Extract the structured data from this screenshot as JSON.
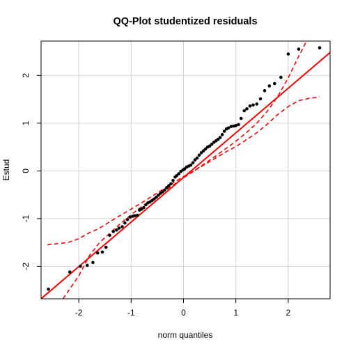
{
  "chart_data": {
    "type": "scatter",
    "title": "QQ-Plot studentized residuals",
    "xlabel": "norm quantiles",
    "ylabel": "Estud",
    "xlim": [
      -2.72,
      2.8
    ],
    "ylim": [
      -2.68,
      2.72
    ],
    "xticks": [
      -2,
      -1,
      0,
      1,
      2
    ],
    "yticks": [
      -2,
      -1,
      0,
      1,
      2
    ],
    "xtick_labels": [
      "-2",
      "-1",
      "0",
      "1",
      "2"
    ],
    "ytick_labels": [
      "-2",
      "-1",
      "0",
      "1",
      "2"
    ],
    "grid": true,
    "colors": {
      "points": "#000000",
      "reference_line": "#ff0000",
      "envelope": "#ff0000",
      "grid": "#d3d3d3"
    },
    "points": {
      "x": [
        -2.58,
        -2.17,
        -1.97,
        -1.84,
        -1.73,
        -1.64,
        -1.55,
        -1.48,
        -1.41,
        -1.34,
        -1.28,
        -1.23,
        -1.17,
        -1.12,
        -1.07,
        -1.02,
        -0.97,
        -0.93,
        -0.88,
        -0.84,
        -0.8,
        -0.76,
        -0.72,
        -0.68,
        -0.64,
        -0.6,
        -0.56,
        -0.52,
        -0.48,
        -0.44,
        -0.4,
        -0.36,
        -0.32,
        -0.28,
        -0.24,
        -0.2,
        -0.16,
        -0.13,
        -0.09,
        -0.05,
        -0.01,
        0.02,
        0.06,
        0.1,
        0.14,
        0.18,
        0.22,
        0.26,
        0.3,
        0.34,
        0.38,
        0.42,
        0.46,
        0.5,
        0.54,
        0.58,
        0.62,
        0.66,
        0.7,
        0.74,
        0.78,
        0.82,
        0.86,
        0.91,
        0.96,
        1.0,
        1.05,
        1.1,
        1.16,
        1.21,
        1.27,
        1.33,
        1.4,
        1.47,
        1.55,
        1.64,
        1.74,
        1.86,
        2.0,
        2.2,
        2.6
      ],
      "y": [
        -2.48,
        -2.12,
        -2.0,
        -1.98,
        -1.92,
        -1.72,
        -1.7,
        -1.6,
        -1.35,
        -1.27,
        -1.24,
        -1.2,
        -1.17,
        -1.09,
        -1.02,
        -0.97,
        -0.95,
        -0.94,
        -0.93,
        -0.82,
        -0.8,
        -0.77,
        -0.71,
        -0.67,
        -0.65,
        -0.62,
        -0.59,
        -0.55,
        -0.51,
        -0.47,
        -0.44,
        -0.4,
        -0.35,
        -0.31,
        -0.27,
        -0.2,
        -0.13,
        -0.1,
        -0.06,
        -0.01,
        0.02,
        0.04,
        0.08,
        0.1,
        0.12,
        0.17,
        0.23,
        0.27,
        0.33,
        0.38,
        0.42,
        0.46,
        0.5,
        0.52,
        0.56,
        0.6,
        0.63,
        0.66,
        0.7,
        0.76,
        0.83,
        0.88,
        0.9,
        0.93,
        0.94,
        0.95,
        0.97,
        1.1,
        1.26,
        1.3,
        1.36,
        1.38,
        1.4,
        1.51,
        1.68,
        1.78,
        1.83,
        1.96,
        2.45,
        2.55,
        2.58
      ]
    },
    "reference_line": {
      "x": [
        -2.72,
        2.8
      ],
      "y": [
        -2.68,
        2.48
      ]
    },
    "envelope_lower": {
      "x": [
        -2.6,
        -2.2,
        -2.0,
        -1.8,
        -1.6,
        -1.4,
        -1.2,
        -1.0,
        -0.8,
        -0.6,
        -0.4,
        -0.2,
        0.0,
        0.2,
        0.4,
        0.6,
        0.8,
        1.0,
        1.2,
        1.4,
        1.6,
        1.8,
        2.0,
        2.2,
        2.4,
        2.6
      ],
      "y": [
        -1.55,
        -1.5,
        -1.42,
        -1.3,
        -1.2,
        -1.06,
        -0.93,
        -0.8,
        -0.67,
        -0.53,
        -0.39,
        -0.25,
        -0.12,
        0.0,
        0.13,
        0.26,
        0.39,
        0.51,
        0.65,
        0.8,
        0.98,
        1.18,
        1.35,
        1.47,
        1.52,
        1.55
      ]
    },
    "envelope_upper": {
      "x": [
        -2.3,
        -2.0,
        -1.8,
        -1.6,
        -1.4,
        -1.2,
        -1.0,
        -0.8,
        -0.6,
        -0.4,
        -0.2,
        0.0,
        0.2,
        0.4,
        0.6,
        0.8,
        1.0,
        1.2,
        1.4,
        1.6,
        1.8,
        2.0,
        2.2,
        2.35
      ],
      "y": [
        -2.68,
        -2.2,
        -1.78,
        -1.5,
        -1.3,
        -1.1,
        -0.92,
        -0.75,
        -0.6,
        -0.45,
        -0.3,
        -0.15,
        0.0,
        0.15,
        0.3,
        0.46,
        0.62,
        0.8,
        1.0,
        1.25,
        1.56,
        1.95,
        2.4,
        2.72
      ]
    }
  }
}
